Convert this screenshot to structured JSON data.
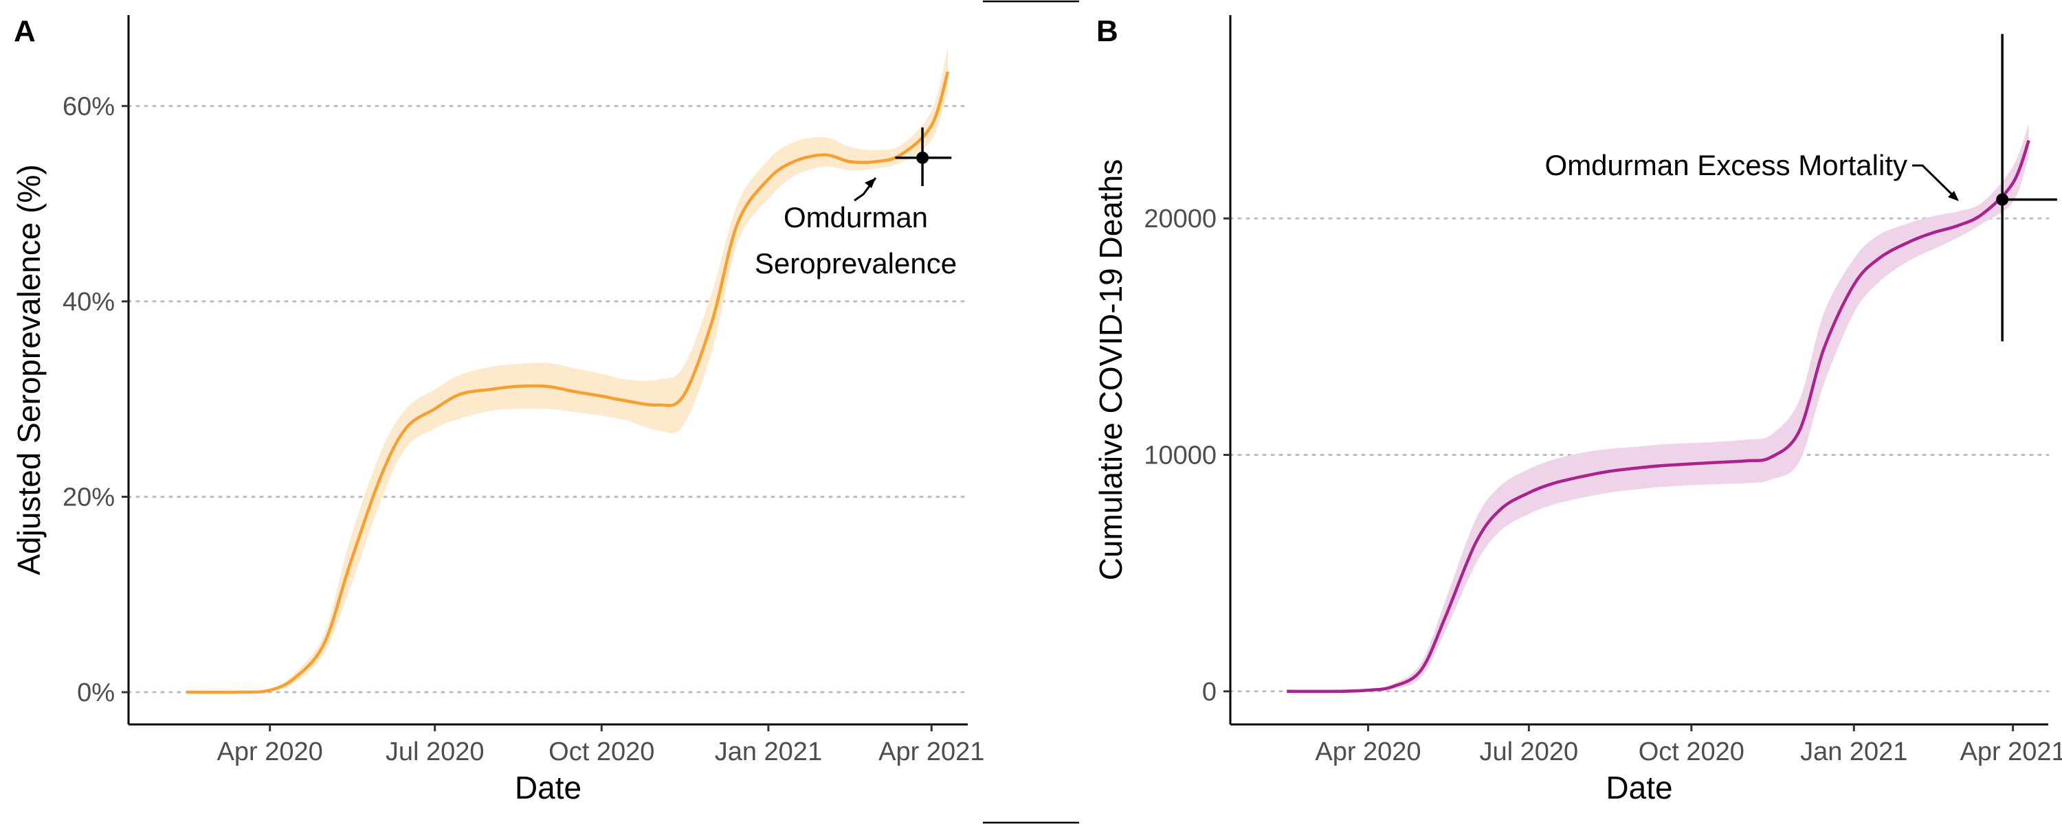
{
  "chart_data": [
    {
      "panel": "A",
      "type": "line",
      "xlabel": "Date",
      "ylabel": "Adjusted Seroprevalence (%)",
      "x_ticks": [
        "Apr 2020",
        "Jul 2020",
        "Oct 2020",
        "Jan 2021",
        "Apr 2021"
      ],
      "x_tick_dates": [
        "2020-04-01",
        "2020-07-01",
        "2020-10-01",
        "2021-01-01",
        "2021-04-01"
      ],
      "y_ticks": [
        "0%",
        "20%",
        "40%",
        "60%"
      ],
      "y_tick_values": [
        0,
        20,
        40,
        60
      ],
      "ylim": [
        -3.3,
        69.3
      ],
      "xlim": [
        "2020-01-14",
        "2021-04-21"
      ],
      "grid": "horizontal dotted",
      "color": "#f5a030",
      "ribbon_color": "#fde9cc",
      "series": [
        {
          "dates": [
            "2020-02-15",
            "2020-03-15",
            "2020-04-01",
            "2020-04-15",
            "2020-05-01",
            "2020-05-15",
            "2020-06-01",
            "2020-06-15",
            "2020-07-01",
            "2020-07-15",
            "2020-08-01",
            "2020-08-15",
            "2020-09-01",
            "2020-09-15",
            "2020-10-01",
            "2020-10-15",
            "2020-11-01",
            "2020-11-15",
            "2020-12-01",
            "2020-12-15",
            "2021-01-01",
            "2021-01-15",
            "2021-02-01",
            "2021-02-15",
            "2021-03-01",
            "2021-03-15",
            "2021-04-01",
            "2021-04-10"
          ],
          "values": [
            0,
            0,
            0.2,
            1.5,
            5,
            13,
            22,
            27,
            29,
            30.5,
            31,
            31.3,
            31.3,
            30.8,
            30.3,
            29.8,
            29.4,
            30.3,
            38,
            48,
            52.5,
            54.3,
            55,
            54.3,
            54.3,
            55,
            58,
            63.5
          ],
          "lower": [
            0,
            0,
            0.1,
            1.0,
            4,
            10.5,
            19.5,
            25,
            27,
            28,
            28.8,
            29,
            29,
            28.7,
            28.3,
            27.8,
            26.8,
            27.3,
            35,
            46,
            50.5,
            52.8,
            53.8,
            53.4,
            53.6,
            54.2,
            56.5,
            61.5
          ],
          "upper": [
            0,
            0,
            0.3,
            2.0,
            6,
            15.5,
            24.5,
            29,
            31,
            32.5,
            33.3,
            33.6,
            33.7,
            33.2,
            32.6,
            32,
            32,
            33.3,
            41,
            50,
            54.5,
            56.3,
            56.8,
            55.8,
            55.5,
            56,
            59.5,
            66
          ]
        }
      ],
      "point": {
        "date": "2021-03-27",
        "value": 54.7,
        "x_err_from": "2021-03-12",
        "x_err_to": "2021-04-12",
        "y_err": [
          51.8,
          57.8
        ]
      },
      "annotation": [
        "Omdurman",
        "Seroprevalence"
      ]
    },
    {
      "panel": "B",
      "type": "line",
      "xlabel": "Date",
      "ylabel": "Cumulative COVID-19 Deaths",
      "x_ticks": [
        "Apr 2020",
        "Jul 2020",
        "Oct 2020",
        "Jan 2021",
        "Apr 2021"
      ],
      "x_tick_dates": [
        "2020-04-01",
        "2020-07-01",
        "2020-10-01",
        "2021-01-01",
        "2021-04-01"
      ],
      "y_ticks": [
        "0",
        "10000",
        "20000"
      ],
      "y_tick_values": [
        0,
        10000,
        20000
      ],
      "ylim": [
        -1400,
        28600
      ],
      "xlim": [
        "2020-01-14",
        "2021-04-21"
      ],
      "grid": "horizontal dotted",
      "color": "#a8248c",
      "ribbon_color": "#efd3e8",
      "series": [
        {
          "dates": [
            "2020-02-15",
            "2020-03-15",
            "2020-04-01",
            "2020-04-15",
            "2020-05-01",
            "2020-05-15",
            "2020-06-01",
            "2020-06-15",
            "2020-07-01",
            "2020-07-15",
            "2020-08-01",
            "2020-08-15",
            "2020-09-01",
            "2020-09-15",
            "2020-10-01",
            "2020-10-15",
            "2020-11-01",
            "2020-11-15",
            "2020-12-01",
            "2020-12-15",
            "2021-01-01",
            "2021-01-15",
            "2021-02-01",
            "2021-02-15",
            "2021-03-01",
            "2021-03-15",
            "2021-04-01",
            "2021-04-10"
          ],
          "values": [
            0,
            0,
            50,
            200,
            900,
            3200,
            6300,
            7700,
            8400,
            8800,
            9100,
            9300,
            9450,
            9550,
            9620,
            9680,
            9750,
            9900,
            11000,
            14500,
            17200,
            18300,
            19000,
            19400,
            19700,
            20200,
            21500,
            23300
          ],
          "lower": [
            0,
            0,
            20,
            100,
            600,
            2600,
            5400,
            6800,
            7500,
            7900,
            8200,
            8400,
            8550,
            8650,
            8720,
            8760,
            8800,
            8950,
            9700,
            13000,
            16000,
            17300,
            18200,
            18700,
            19200,
            19800,
            20700,
            22600
          ],
          "upper": [
            0,
            0,
            80,
            300,
            1200,
            3900,
            7300,
            8700,
            9400,
            9800,
            10100,
            10250,
            10350,
            10450,
            10500,
            10550,
            10650,
            10850,
            12300,
            16000,
            18300,
            19300,
            19800,
            20100,
            20300,
            20700,
            22200,
            24000
          ]
        }
      ],
      "point": {
        "date": "2021-03-26",
        "value": 20800,
        "x_err_from": "2021-03-26",
        "x_err_to": "2021-04-26",
        "y_err": [
          14800,
          27800
        ]
      },
      "annotation": [
        "Omdurman Excess Mortality"
      ]
    }
  ]
}
